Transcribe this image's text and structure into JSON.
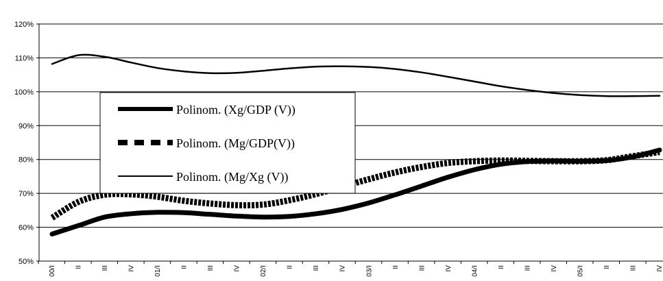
{
  "chart_data": {
    "type": "line",
    "categories": [
      "00/I",
      "II",
      "III",
      "IV",
      "01/I",
      "II",
      "III",
      "IV",
      "02/I",
      "II",
      "III",
      "IV",
      "03/I",
      "II",
      "III",
      "IV",
      "04/I",
      "II",
      "III",
      "IV",
      "05/I",
      "II",
      "III",
      "IV"
    ],
    "ylim": [
      0.5,
      1.2
    ],
    "yticks": [
      0.5,
      0.6,
      0.7,
      0.8,
      0.9,
      1.0,
      1.1,
      1.2
    ],
    "ytick_labels": [
      "50%",
      "60%",
      "70%",
      "80%",
      "90%",
      "100%",
      "110%",
      "120%"
    ],
    "grid": true,
    "legend_position": "left",
    "series": [
      {
        "name": "Polinom. (Xg/GDP (V))",
        "style": "thick-solid",
        "color": "#000000",
        "values": [
          0.58,
          0.605,
          0.63,
          0.64,
          0.644,
          0.643,
          0.638,
          0.633,
          0.63,
          0.632,
          0.64,
          0.653,
          0.672,
          0.696,
          0.722,
          0.748,
          0.77,
          0.786,
          0.794,
          0.796,
          0.795,
          0.797,
          0.808,
          0.828
        ]
      },
      {
        "name": "Polinom. (Mg/GDP(V))",
        "style": "thick-dashed",
        "color": "#000000",
        "values": [
          0.628,
          0.675,
          0.696,
          0.697,
          0.69,
          0.678,
          0.67,
          0.665,
          0.667,
          0.68,
          0.698,
          0.72,
          0.742,
          0.762,
          0.778,
          0.79,
          0.795,
          0.797,
          0.796,
          0.795,
          0.795,
          0.798,
          0.81,
          0.822
        ]
      },
      {
        "name": "Polinom. (Mg/Xg (V))",
        "style": "thin-solid",
        "color": "#000000",
        "values": [
          1.082,
          1.108,
          1.103,
          1.086,
          1.07,
          1.06,
          1.055,
          1.056,
          1.062,
          1.069,
          1.074,
          1.075,
          1.073,
          1.067,
          1.057,
          1.044,
          1.03,
          1.016,
          1.005,
          0.996,
          0.99,
          0.987,
          0.987,
          0.988
        ]
      }
    ],
    "legend": [
      {
        "label": "Polinom. (Xg/GDP (V))"
      },
      {
        "label": "Polinom. (Mg/GDP(V))"
      },
      {
        "label": "Polinom. (Mg/Xg (V))"
      }
    ]
  }
}
